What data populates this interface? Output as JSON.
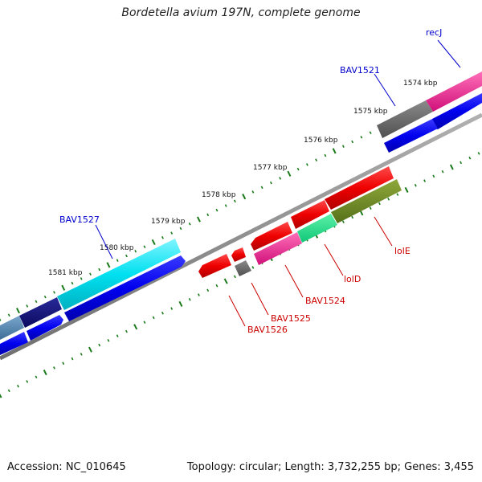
{
  "title": "Bordetella avium 197N, complete genome",
  "footer": {
    "accession": "Accession: NC_010645",
    "summary": "Topology: circular; Length: 3,732,255 bp; Genes: 3,455"
  },
  "colors": {
    "forward_label": "#0000cc",
    "reverse_label": "#cc0000",
    "tick": "#1a7a1a",
    "backbone": "#8c8c8c"
  },
  "kbp_ticks": [
    {
      "label": "1574 kbp",
      "kbp": 1574
    },
    {
      "label": "1575 kbp",
      "kbp": 1575
    },
    {
      "label": "1576 kbp",
      "kbp": 1576
    },
    {
      "label": "1577 kbp",
      "kbp": 1577
    },
    {
      "label": "1578 kbp",
      "kbp": 1578
    },
    {
      "label": "1579 kbp",
      "kbp": 1579
    },
    {
      "label": "1580 kbp",
      "kbp": 1580
    },
    {
      "label": "1581 kbp",
      "kbp": 1581
    }
  ],
  "gene_labels": [
    {
      "name": "recJ",
      "strand": "forward"
    },
    {
      "name": "BAV1521",
      "strand": "forward"
    },
    {
      "name": "BAV1527",
      "strand": "forward"
    },
    {
      "name": "lolE",
      "strand": "reverse"
    },
    {
      "name": "lolD",
      "strand": "reverse"
    },
    {
      "name": "BAV1524",
      "strand": "reverse"
    },
    {
      "name": "BAV1525",
      "strand": "reverse"
    },
    {
      "name": "BAV1526",
      "strand": "reverse"
    }
  ]
}
